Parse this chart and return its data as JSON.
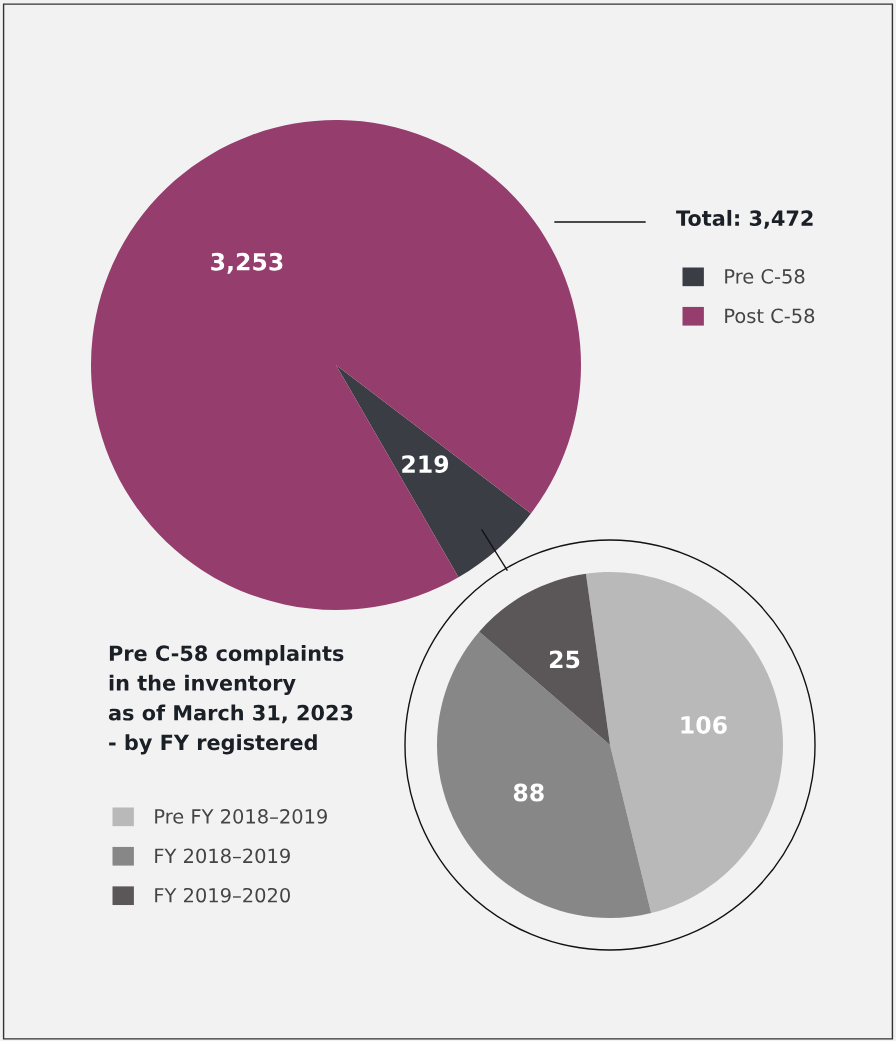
{
  "chart_data": [
    {
      "type": "pie",
      "title": "Total: 3,472",
      "categories": [
        "Pre C-58",
        "Post C-58"
      ],
      "values": [
        219,
        3253
      ],
      "value_labels": [
        "219",
        "3,253"
      ],
      "colors": [
        "#3b3d44",
        "#953d6d"
      ],
      "legend": "right"
    },
    {
      "type": "pie",
      "title": "Pre C-58 complaints\nin the inventory\nas of March 31, 2023\n- by FY registered",
      "categories": [
        "Pre FY 2018–2019",
        "FY 2018–2019",
        "FY 2019–2020"
      ],
      "values": [
        106,
        88,
        25
      ],
      "colors": [
        "#b9b9b9",
        "#878787",
        "#5b5758"
      ],
      "data_labels": true,
      "legend": "left"
    }
  ]
}
